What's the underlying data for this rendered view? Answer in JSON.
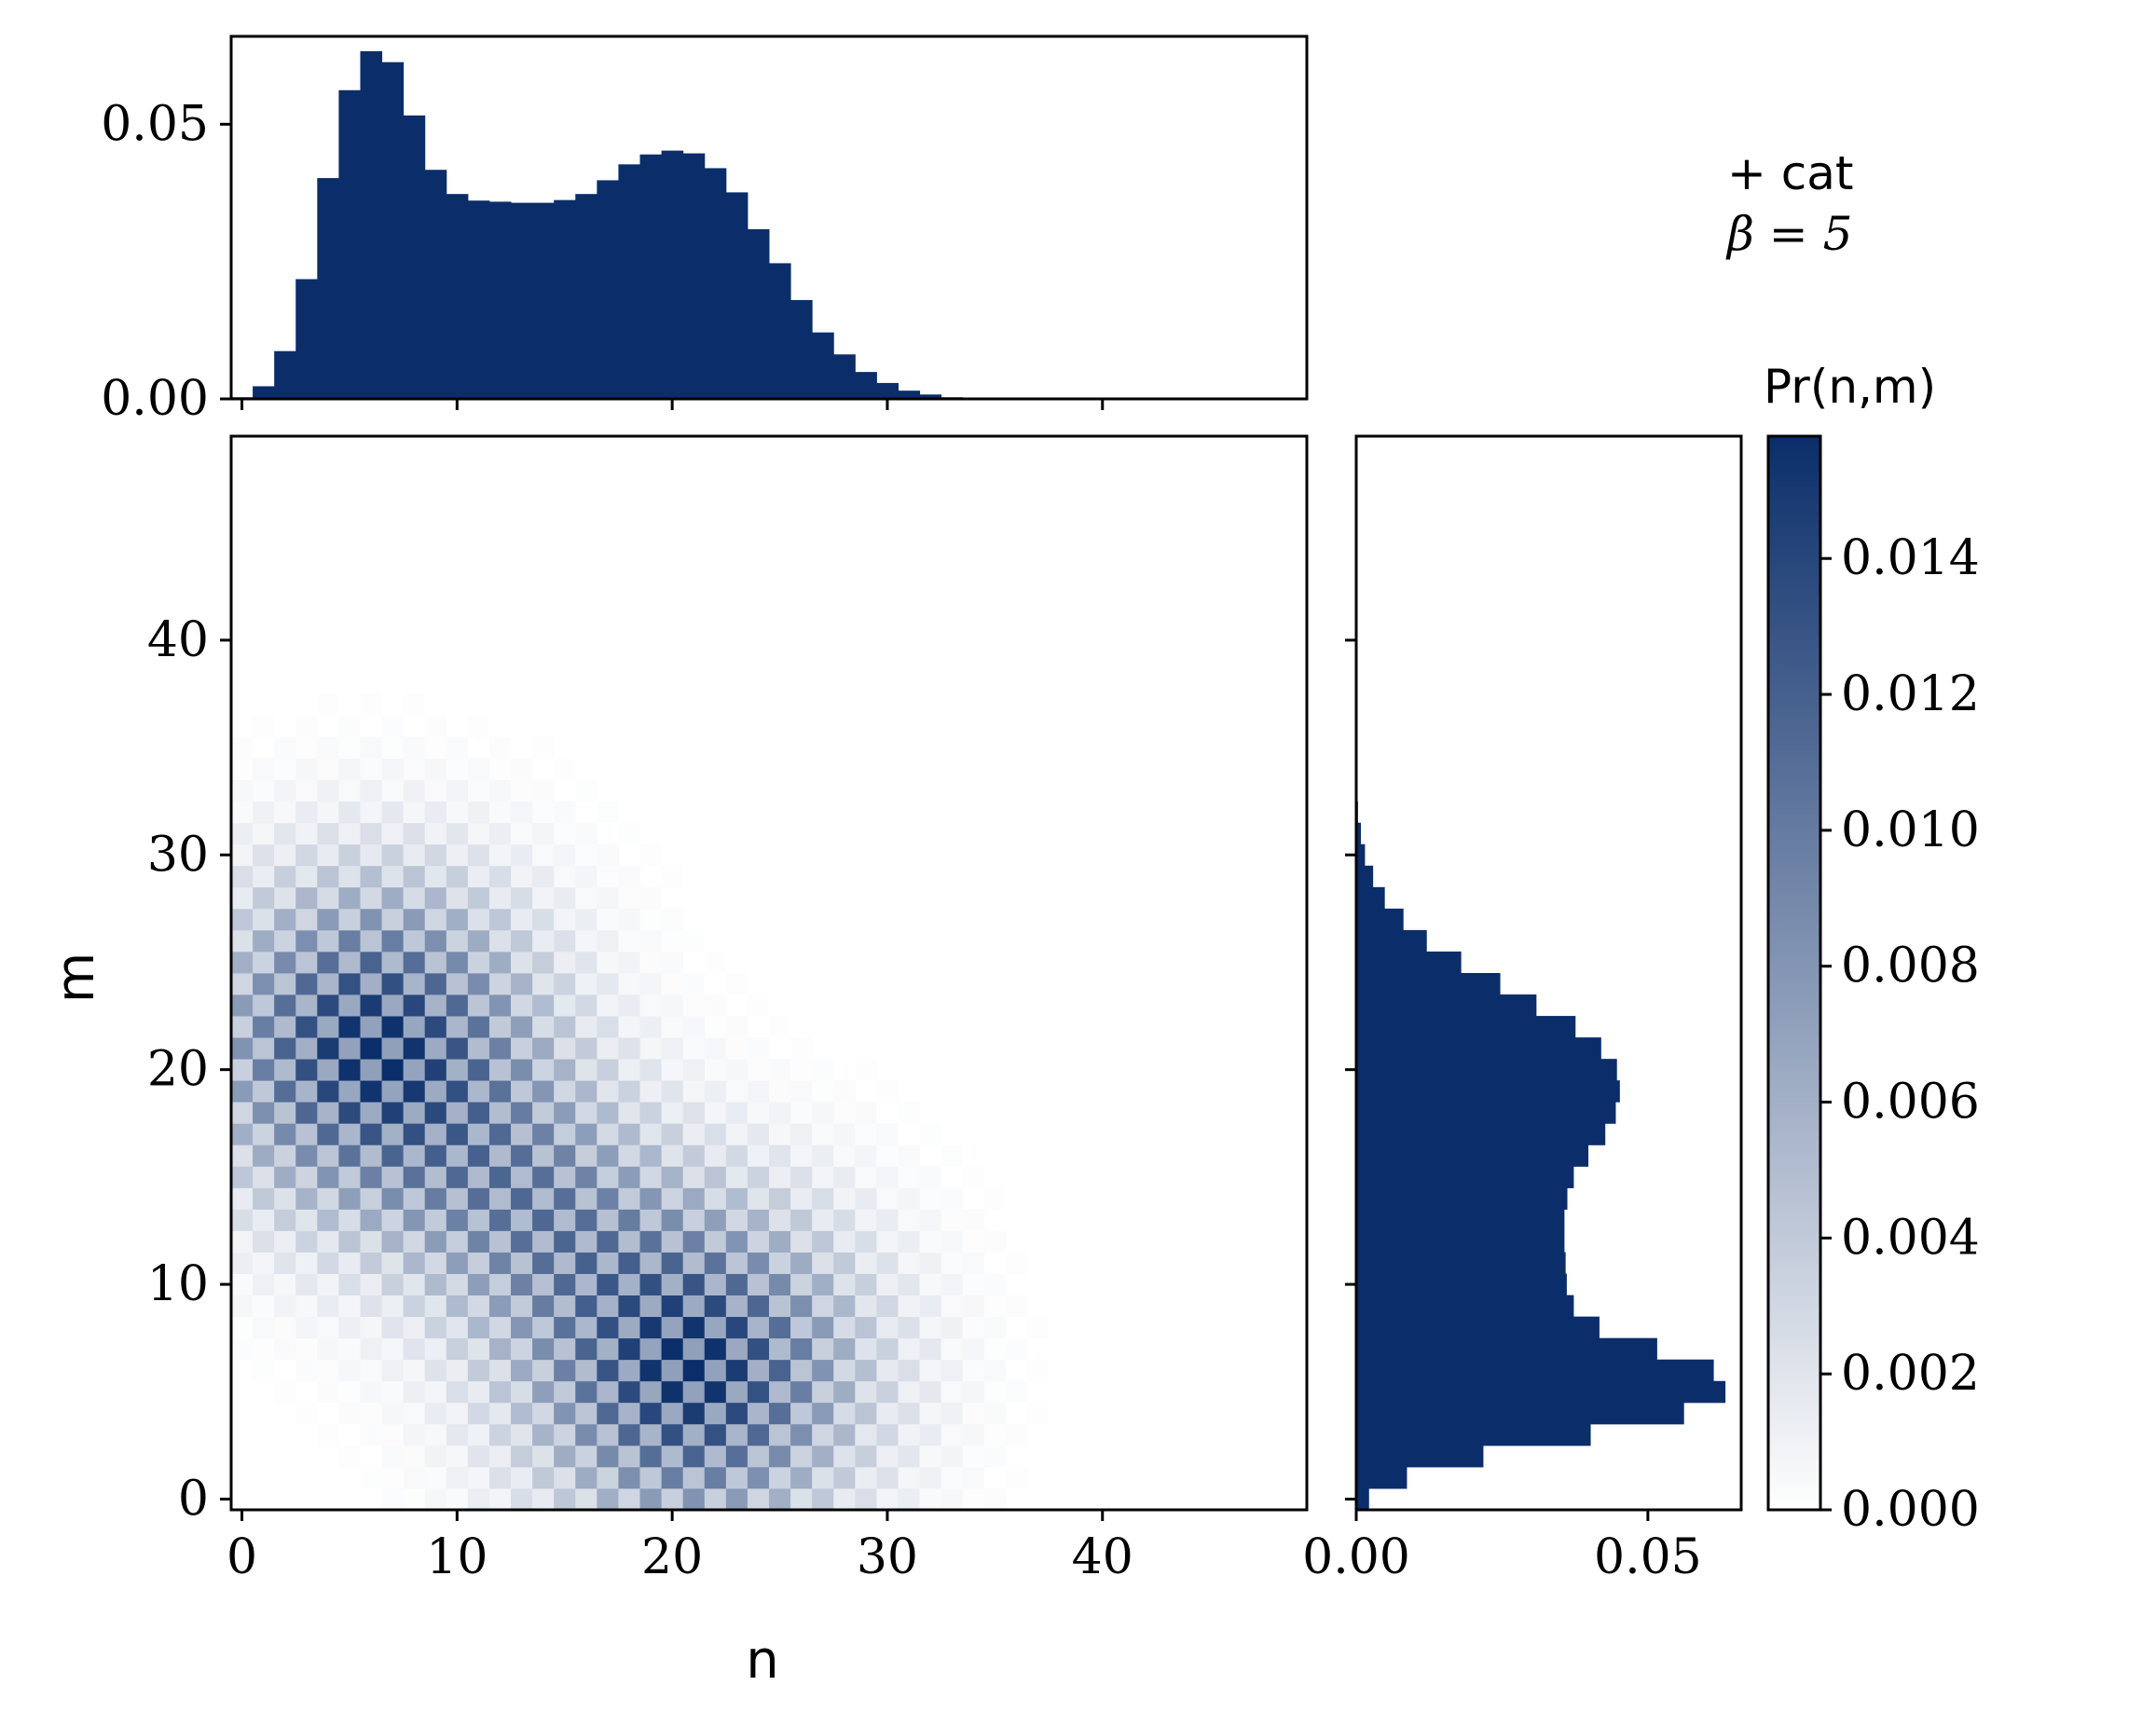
{
  "chart_data": {
    "type": "heatmap",
    "annotation": {
      "line1": "+ cat",
      "line2": "β = 5"
    },
    "colorbar": {
      "label": "Pr(n,m)",
      "range": [
        0,
        0.0158
      ],
      "ticks": [
        0.0,
        0.002,
        0.004,
        0.006,
        0.008,
        0.01,
        0.012,
        0.014
      ],
      "tick_labels": [
        "0.000",
        "0.002",
        "0.004",
        "0.006",
        "0.008",
        "0.010",
        "0.012",
        "0.014"
      ],
      "colormap": "white-to-navy",
      "low_color": "#ffffff",
      "high_color": "#0b2e6a"
    },
    "joint": {
      "xlabel": "n",
      "ylabel": "m",
      "xlim": [
        -0.5,
        49.5
      ],
      "ylim": [
        -0.5,
        49.5
      ],
      "xticks": [
        0,
        10,
        20,
        30,
        40
      ],
      "yticks": [
        0,
        10,
        20,
        30,
        40
      ],
      "description_peaks": [
        {
          "n": 6,
          "m": 21,
          "peak": 0.0158
        },
        {
          "n": 11,
          "m": 16,
          "peak": 0.0075
        },
        {
          "n": 16,
          "m": 11,
          "peak": 0.0075
        },
        {
          "n": 21,
          "m": 6,
          "peak": 0.0158
        }
      ]
    },
    "marginal_n": {
      "type": "bar",
      "orientation": "vertical",
      "color": "#0b2e6a",
      "ylim": [
        0,
        0.066
      ],
      "yticks": [
        0.0,
        0.05
      ],
      "ytick_labels": [
        "0.00",
        "0.05"
      ],
      "x": [
        0,
        1,
        2,
        3,
        4,
        5,
        6,
        7,
        8,
        9,
        10,
        11,
        12,
        13,
        14,
        15,
        16,
        17,
        18,
        19,
        20,
        21,
        22,
        23,
        24,
        25,
        26,
        27,
        28,
        29,
        30,
        31,
        32,
        33,
        34,
        35
      ],
      "values": [
        0.0003,
        0.0023,
        0.0087,
        0.0218,
        0.0402,
        0.0562,
        0.0633,
        0.0613,
        0.0516,
        0.0417,
        0.0373,
        0.0361,
        0.0359,
        0.0357,
        0.0357,
        0.0362,
        0.0373,
        0.0398,
        0.0427,
        0.0445,
        0.0452,
        0.0447,
        0.042,
        0.0376,
        0.0309,
        0.0247,
        0.018,
        0.0121,
        0.0081,
        0.0049,
        0.0029,
        0.0015,
        0.0008,
        0.0003,
        0.0001,
        0.0001
      ]
    },
    "marginal_m": {
      "type": "bar",
      "orientation": "horizontal",
      "color": "#0b2e6a",
      "xlim": [
        0,
        0.066
      ],
      "xticks": [
        0.0,
        0.05
      ],
      "xtick_labels": [
        "0.00",
        "0.05"
      ],
      "y": [
        0,
        1,
        2,
        3,
        4,
        5,
        6,
        7,
        8,
        9,
        10,
        11,
        12,
        13,
        14,
        15,
        16,
        17,
        18,
        19,
        20,
        21,
        22,
        23,
        24,
        25,
        26,
        27,
        28,
        29,
        30,
        31,
        32,
        33
      ],
      "values": [
        0.0022,
        0.0087,
        0.0218,
        0.0402,
        0.0562,
        0.0633,
        0.0613,
        0.0516,
        0.0417,
        0.0373,
        0.0361,
        0.0359,
        0.0357,
        0.0357,
        0.0362,
        0.0373,
        0.0398,
        0.0427,
        0.0445,
        0.0452,
        0.0447,
        0.042,
        0.0376,
        0.0309,
        0.0247,
        0.018,
        0.0121,
        0.0081,
        0.0049,
        0.0029,
        0.0015,
        0.0008,
        0.0003,
        0.0001
      ]
    }
  }
}
